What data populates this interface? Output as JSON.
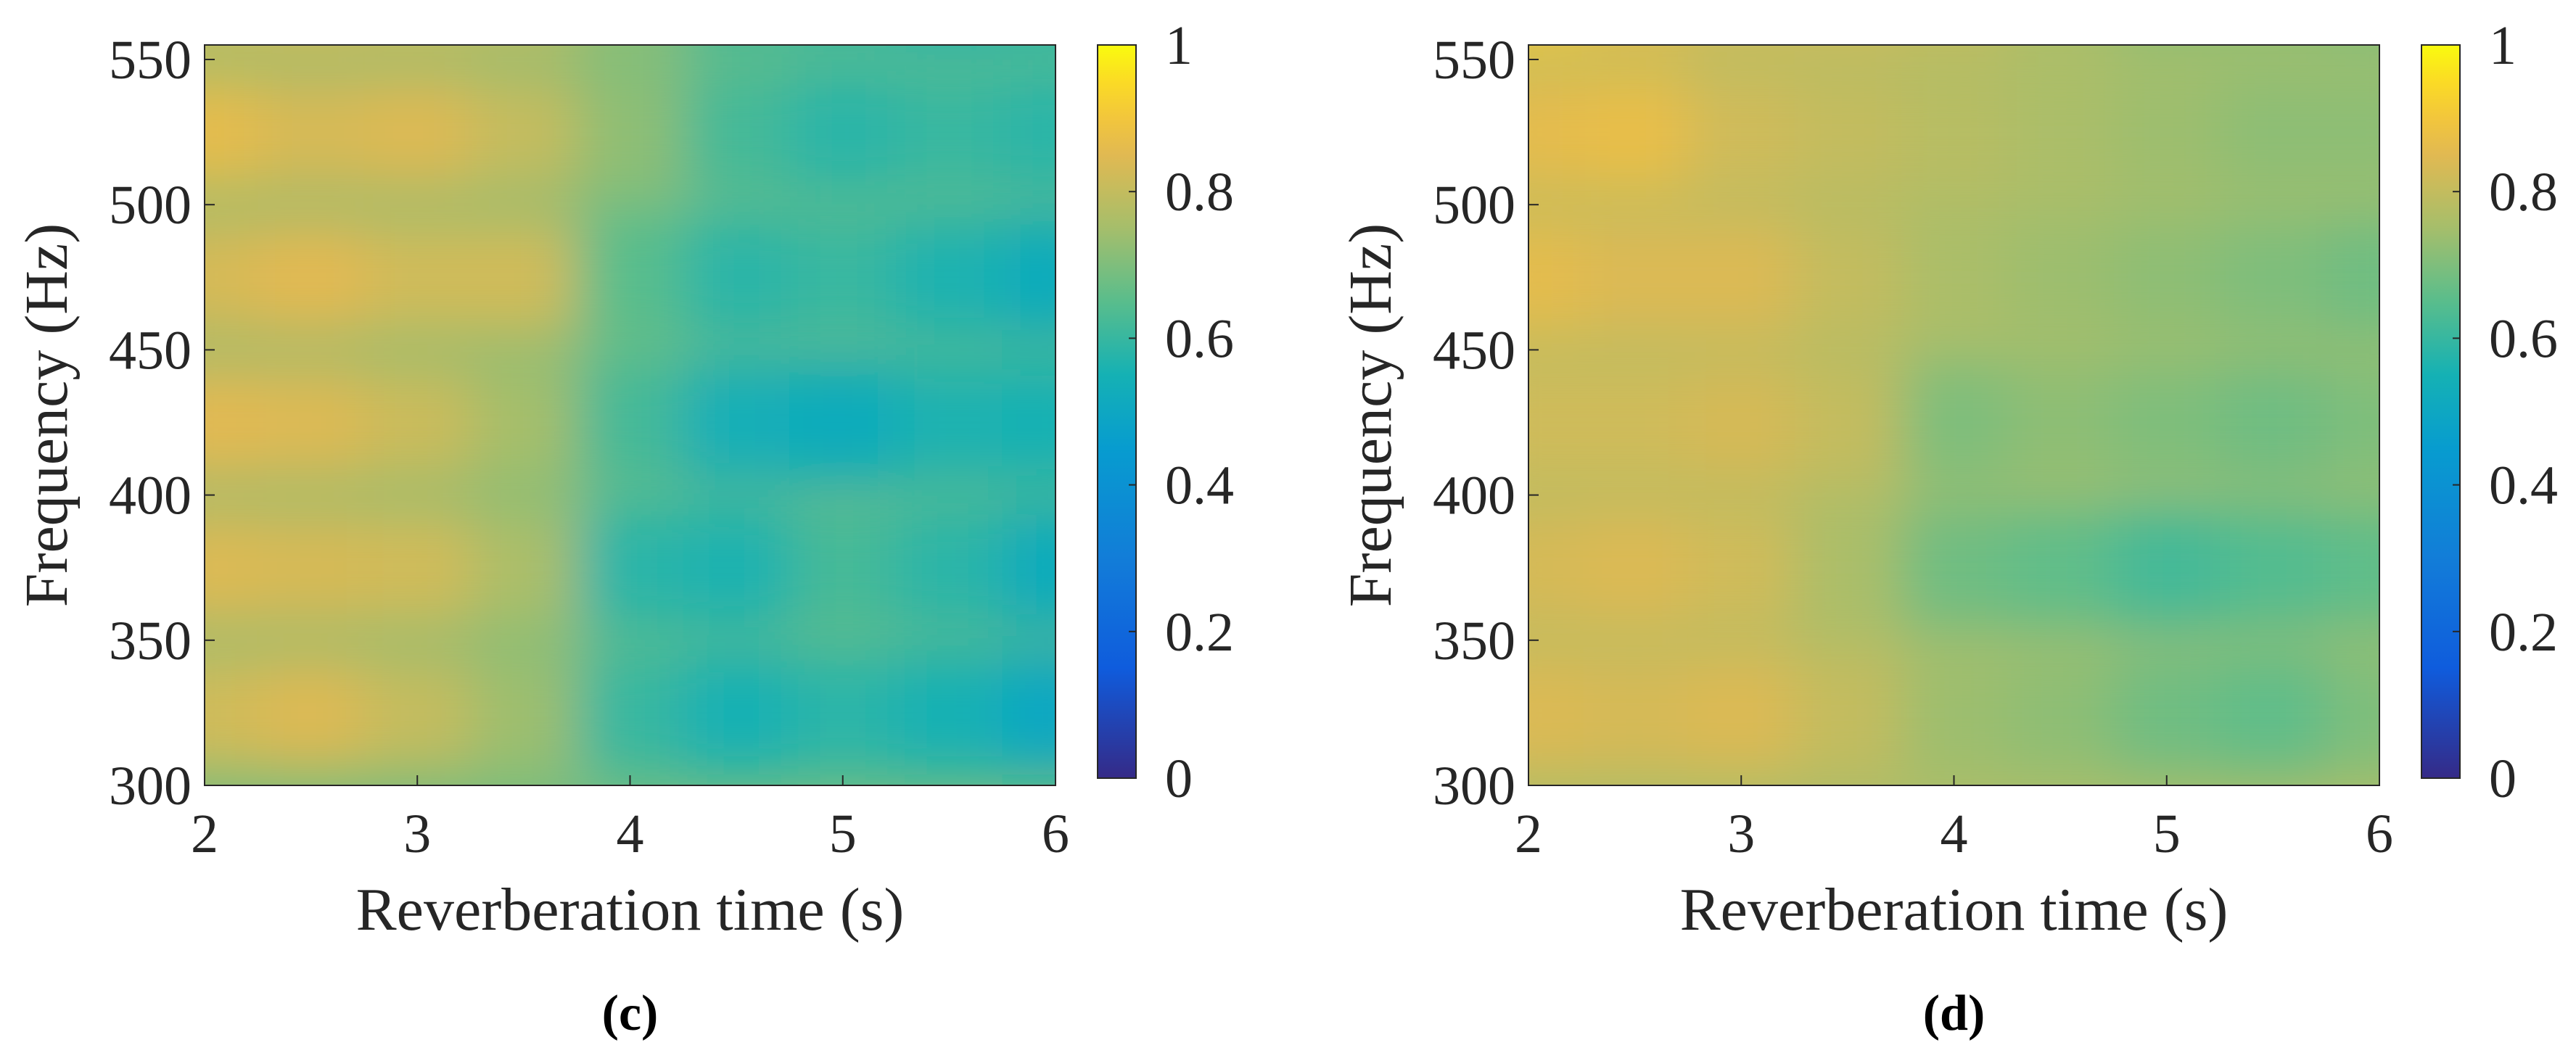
{
  "chart_data": [
    {
      "type": "heatmap",
      "panel_label": "(c)",
      "xlabel": "Reverberation time (s)",
      "ylabel": "Frequency (Hz)",
      "xlim": [
        2,
        6
      ],
      "ylim": [
        300,
        555
      ],
      "x_ticks": [
        "2",
        "3",
        "4",
        "5",
        "6"
      ],
      "y_ticks": [
        "300",
        "350",
        "400",
        "450",
        "500",
        "550"
      ],
      "colorbar": {
        "range": [
          0,
          1
        ],
        "ticks": [
          "0",
          "0.2",
          "0.4",
          "0.6",
          "0.8",
          "1"
        ],
        "colormap": "parula"
      },
      "x_bands": [
        2.0,
        2.5,
        3.0,
        3.5,
        4.0,
        4.5,
        5.0,
        5.5,
        6.0
      ],
      "y_bands": [
        300,
        350,
        400,
        450,
        500,
        550
      ],
      "values": [
        [
          0.82,
          0.84,
          0.8,
          0.74,
          0.6,
          0.55,
          0.58,
          0.55,
          0.5
        ],
        [
          0.84,
          0.83,
          0.82,
          0.76,
          0.58,
          0.56,
          0.62,
          0.58,
          0.52
        ],
        [
          0.85,
          0.84,
          0.81,
          0.75,
          0.62,
          0.54,
          0.52,
          0.56,
          0.55
        ],
        [
          0.83,
          0.85,
          0.82,
          0.82,
          0.65,
          0.58,
          0.6,
          0.56,
          0.52
        ],
        [
          0.86,
          0.83,
          0.84,
          0.8,
          0.72,
          0.62,
          0.58,
          0.6,
          0.58
        ],
        [
          0.82,
          0.84,
          0.82,
          0.8,
          0.72,
          0.62,
          0.6,
          0.56,
          0.58
        ]
      ]
    },
    {
      "type": "heatmap",
      "panel_label": "(d)",
      "xlabel": "Reverberation time (s)",
      "ylabel": "Frequency (Hz)",
      "xlim": [
        2,
        6
      ],
      "ylim": [
        300,
        555
      ],
      "x_ticks": [
        "2",
        "3",
        "4",
        "5",
        "6"
      ],
      "y_ticks": [
        "300",
        "350",
        "400",
        "450",
        "500",
        "550"
      ],
      "colorbar": {
        "range": [
          0,
          1
        ],
        "ticks": [
          "0",
          "0.2",
          "0.4",
          "0.6",
          "0.8",
          "1"
        ],
        "colormap": "parula"
      },
      "x_bands": [
        2.0,
        2.5,
        3.0,
        3.5,
        4.0,
        4.5,
        5.0,
        5.5,
        6.0
      ],
      "y_bands": [
        300,
        350,
        400,
        450,
        500,
        550
      ],
      "values": [
        [
          0.84,
          0.83,
          0.84,
          0.8,
          0.74,
          0.72,
          0.68,
          0.66,
          0.7
        ],
        [
          0.83,
          0.84,
          0.82,
          0.76,
          0.68,
          0.66,
          0.62,
          0.64,
          0.66
        ],
        [
          0.82,
          0.82,
          0.83,
          0.8,
          0.7,
          0.72,
          0.7,
          0.68,
          0.7
        ],
        [
          0.86,
          0.84,
          0.84,
          0.8,
          0.76,
          0.74,
          0.72,
          0.7,
          0.68
        ],
        [
          0.86,
          0.87,
          0.82,
          0.8,
          0.78,
          0.76,
          0.74,
          0.72,
          0.72
        ],
        [
          0.9,
          0.86,
          0.82,
          0.82,
          0.8,
          0.76,
          0.72,
          0.72,
          0.7
        ]
      ]
    }
  ]
}
